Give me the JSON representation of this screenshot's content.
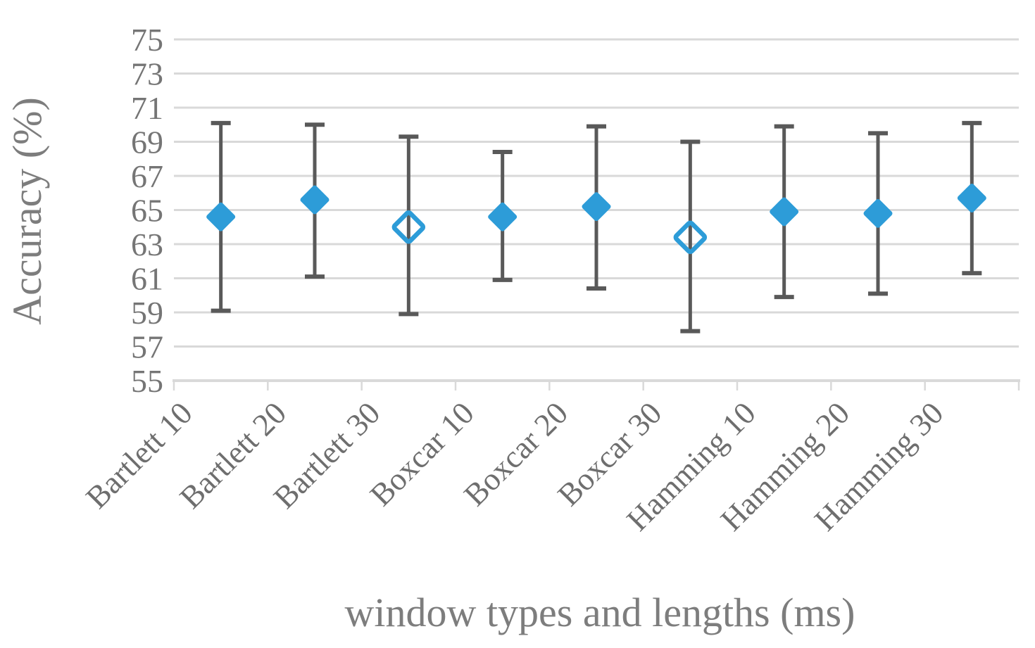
{
  "chart_data": {
    "type": "scatter",
    "title": "",
    "xlabel": "window types and lengths (ms)",
    "ylabel": "Accuracy (%)",
    "ylim": [
      55,
      75
    ],
    "yticks": [
      55,
      57,
      59,
      61,
      63,
      65,
      67,
      69,
      71,
      73,
      75
    ],
    "grid": true,
    "legend": "none",
    "marker": "diamond",
    "categories": [
      "Bartlett 10",
      "Bartlett 20",
      "Bartlett 30",
      "Boxcar 10",
      "Boxcar 20",
      "Boxcar 30",
      "Hamming 10",
      "Hamming 20",
      "Hamming 30"
    ],
    "series": [
      {
        "name": "accuracy",
        "points": [
          {
            "category": "Bartlett 10",
            "value": 64.6,
            "err_high": 70.1,
            "err_low": 59.1,
            "filled": true
          },
          {
            "category": "Bartlett 20",
            "value": 65.6,
            "err_high": 70.0,
            "err_low": 61.1,
            "filled": true
          },
          {
            "category": "Bartlett 30",
            "value": 64.0,
            "err_high": 69.3,
            "err_low": 58.9,
            "filled": false
          },
          {
            "category": "Boxcar 10",
            "value": 64.6,
            "err_high": 68.4,
            "err_low": 60.9,
            "filled": true
          },
          {
            "category": "Boxcar 20",
            "value": 65.2,
            "err_high": 69.9,
            "err_low": 60.4,
            "filled": true
          },
          {
            "category": "Boxcar 30",
            "value": 63.4,
            "err_high": 69.0,
            "err_low": 57.9,
            "filled": false
          },
          {
            "category": "Hamming 10",
            "value": 64.9,
            "err_high": 69.9,
            "err_low": 59.9,
            "filled": true
          },
          {
            "category": "Hamming 20",
            "value": 64.8,
            "err_high": 69.5,
            "err_low": 60.1,
            "filled": true
          },
          {
            "category": "Hamming 30",
            "value": 65.7,
            "err_high": 70.1,
            "err_low": 61.3,
            "filled": true
          }
        ]
      }
    ],
    "colors": {
      "marker": "#2d9cd8",
      "error_bar": "#595959",
      "gridline": "#d9d9d9",
      "axis_line": "#d9d9d9",
      "tick_label": "#757575",
      "axis_title": "#7d7d7d",
      "background": "#ffffff"
    }
  }
}
